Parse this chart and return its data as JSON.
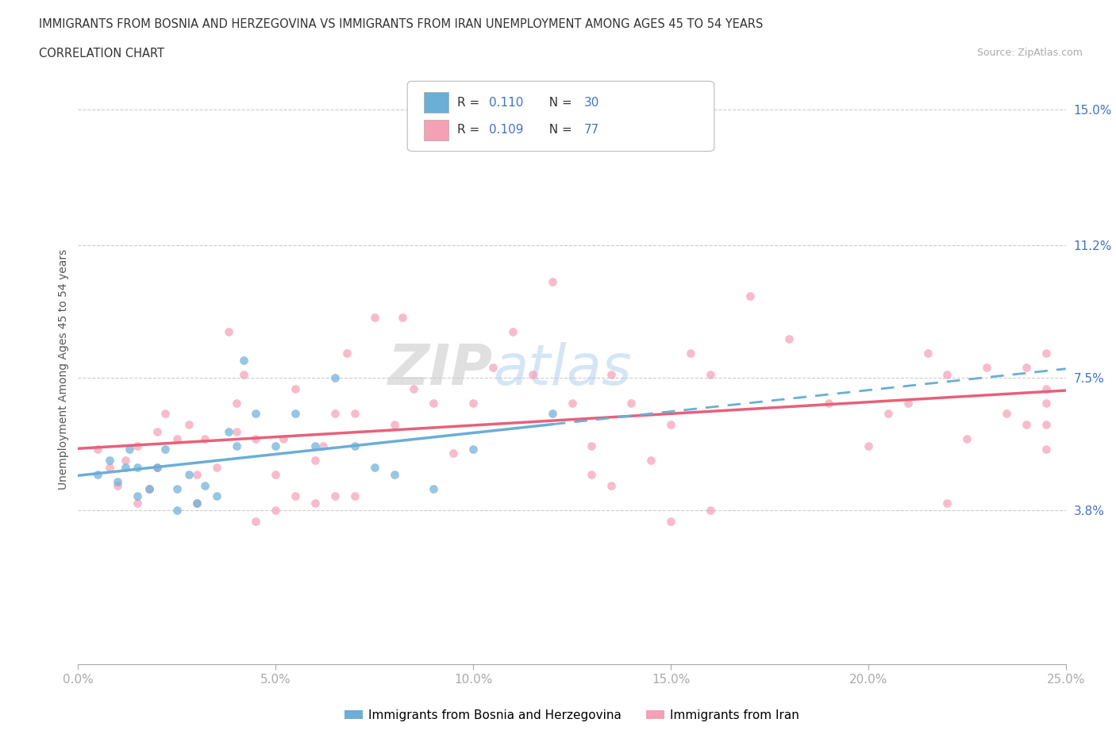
{
  "title_line1": "IMMIGRANTS FROM BOSNIA AND HERZEGOVINA VS IMMIGRANTS FROM IRAN UNEMPLOYMENT AMONG AGES 45 TO 54 YEARS",
  "title_line2": "CORRELATION CHART",
  "source": "Source: ZipAtlas.com",
  "ylabel": "Unemployment Among Ages 45 to 54 years",
  "xlim": [
    0.0,
    0.25
  ],
  "ylim": [
    -0.005,
    0.16
  ],
  "ytick_positions": [
    0.038,
    0.075,
    0.112,
    0.15
  ],
  "ytick_labels": [
    "3.8%",
    "7.5%",
    "11.2%",
    "15.0%"
  ],
  "xtick_positions": [
    0.0,
    0.05,
    0.1,
    0.15,
    0.2,
    0.25
  ],
  "xtick_labels": [
    "0.0%",
    "5.0%",
    "10.0%",
    "15.0%",
    "20.0%",
    "25.0%"
  ],
  "grid_color": "#cccccc",
  "background_color": "#ffffff",
  "color_bosnia": "#6baed6",
  "color_iran": "#f4a0b5",
  "color_iran_line": "#e8607a",
  "legend_r_bosnia": "R = 0.110",
  "legend_n_bosnia": "N = 30",
  "legend_r_iran": "R = 0.109",
  "legend_n_iran": "N = 77",
  "legend_label_bosnia": "Immigrants from Bosnia and Herzegovina",
  "legend_label_iran": "Immigrants from Iran",
  "watermark": "ZIPatlas",
  "bosnia_x": [
    0.005,
    0.008,
    0.01,
    0.012,
    0.013,
    0.015,
    0.015,
    0.018,
    0.02,
    0.022,
    0.025,
    0.025,
    0.028,
    0.03,
    0.032,
    0.035,
    0.038,
    0.04,
    0.042,
    0.045,
    0.05,
    0.055,
    0.06,
    0.065,
    0.07,
    0.075,
    0.08,
    0.09,
    0.1,
    0.12
  ],
  "bosnia_y": [
    0.048,
    0.052,
    0.046,
    0.05,
    0.055,
    0.042,
    0.05,
    0.044,
    0.05,
    0.055,
    0.038,
    0.044,
    0.048,
    0.04,
    0.045,
    0.042,
    0.06,
    0.056,
    0.08,
    0.065,
    0.056,
    0.065,
    0.056,
    0.075,
    0.056,
    0.05,
    0.048,
    0.044,
    0.055,
    0.065
  ],
  "iran_x": [
    0.005,
    0.008,
    0.01,
    0.012,
    0.015,
    0.015,
    0.018,
    0.02,
    0.02,
    0.022,
    0.025,
    0.028,
    0.03,
    0.03,
    0.032,
    0.035,
    0.038,
    0.04,
    0.04,
    0.042,
    0.045,
    0.05,
    0.052,
    0.055,
    0.06,
    0.062,
    0.065,
    0.068,
    0.07,
    0.075,
    0.08,
    0.082,
    0.085,
    0.09,
    0.095,
    0.1,
    0.105,
    0.11,
    0.115,
    0.12,
    0.125,
    0.13,
    0.135,
    0.14,
    0.145,
    0.15,
    0.155,
    0.16,
    0.17,
    0.18,
    0.19,
    0.2,
    0.205,
    0.21,
    0.215,
    0.22,
    0.225,
    0.23,
    0.235,
    0.24,
    0.245,
    0.24,
    0.245,
    0.15,
    0.16,
    0.22,
    0.245,
    0.245,
    0.245,
    0.13,
    0.135,
    0.07,
    0.065,
    0.06,
    0.055,
    0.05,
    0.045
  ],
  "iran_y": [
    0.055,
    0.05,
    0.045,
    0.052,
    0.04,
    0.056,
    0.044,
    0.05,
    0.06,
    0.065,
    0.058,
    0.062,
    0.04,
    0.048,
    0.058,
    0.05,
    0.088,
    0.06,
    0.068,
    0.076,
    0.058,
    0.048,
    0.058,
    0.072,
    0.052,
    0.056,
    0.065,
    0.082,
    0.065,
    0.092,
    0.062,
    0.092,
    0.072,
    0.068,
    0.054,
    0.068,
    0.078,
    0.088,
    0.076,
    0.102,
    0.068,
    0.056,
    0.076,
    0.068,
    0.052,
    0.062,
    0.082,
    0.076,
    0.098,
    0.086,
    0.068,
    0.056,
    0.065,
    0.068,
    0.082,
    0.076,
    0.058,
    0.078,
    0.065,
    0.078,
    0.062,
    0.062,
    0.068,
    0.035,
    0.038,
    0.04,
    0.072,
    0.055,
    0.082,
    0.048,
    0.045,
    0.042,
    0.042,
    0.04,
    0.042,
    0.038,
    0.035
  ]
}
